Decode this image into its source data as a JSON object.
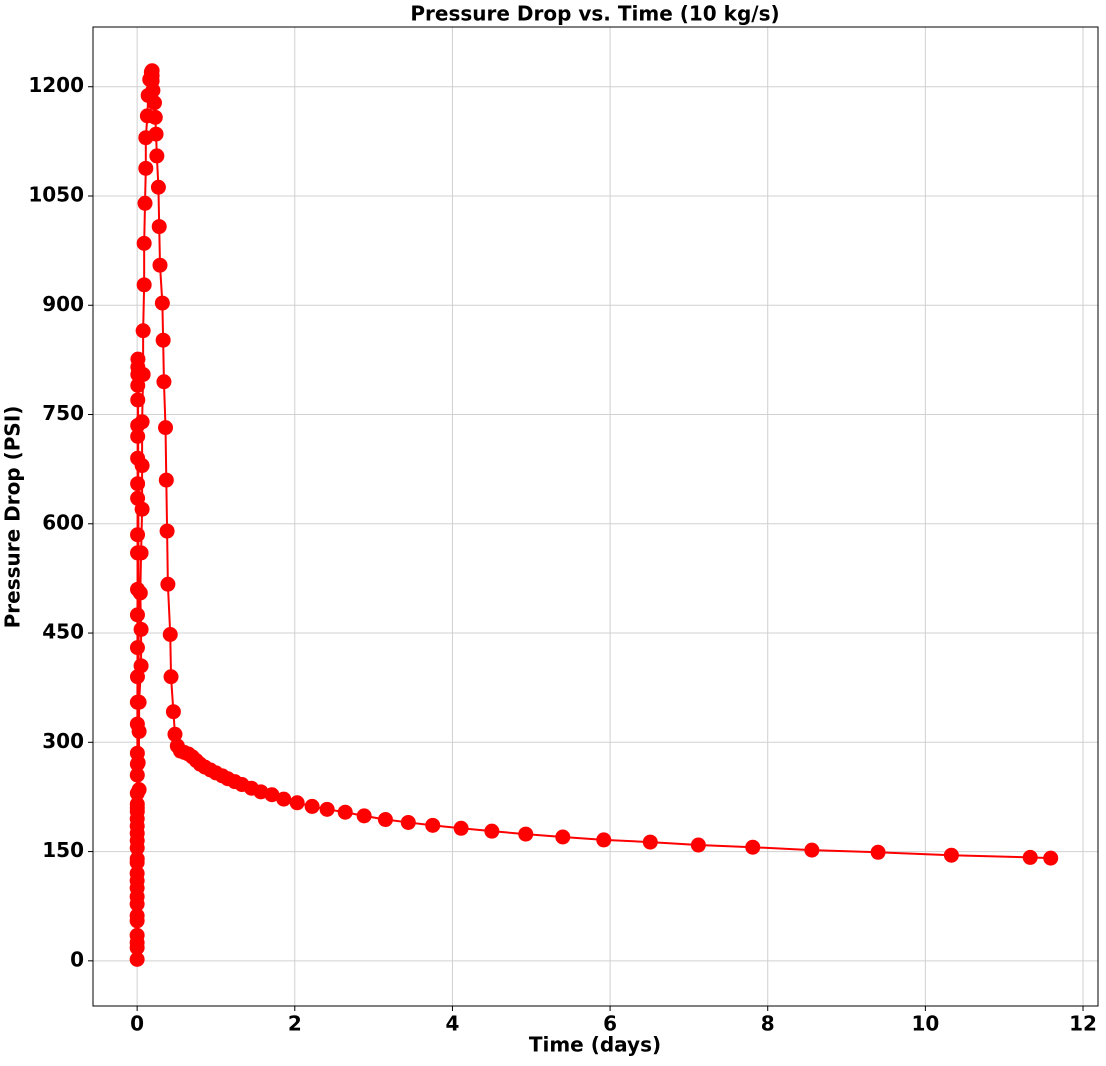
{
  "chart_data": {
    "type": "line",
    "title": "Pressure Drop vs. Time (10 kg/s)",
    "x_label": "Time (days)",
    "y_label": "Pressure Drop (PSI)",
    "xlim": [
      -0.56,
      12.19
    ],
    "ylim": [
      -62,
      1282
    ],
    "xticks": [
      0,
      2,
      4,
      6,
      8,
      10,
      12
    ],
    "yticks": [
      0,
      150,
      300,
      450,
      600,
      750,
      900,
      1050,
      1200
    ],
    "grid": true,
    "series": [
      {
        "color": "#ff0000",
        "x": [
          0,
          0,
          0,
          0,
          0,
          0,
          0,
          0,
          0,
          0,
          0,
          0,
          0.001,
          0.001,
          0.001,
          0.001,
          0.001,
          0.001,
          0.002,
          0.002,
          0.002,
          0.002,
          0.002,
          0.003,
          0.003,
          0.003,
          0.003,
          0.004,
          0.004,
          0.004,
          0.005,
          0.005,
          0.005,
          0.006,
          0.006,
          0.006,
          0.007,
          0.007,
          0.008,
          0.008,
          0.009,
          0.009,
          0.01,
          0.025,
          0.013,
          0.025,
          0.025,
          0.05,
          0.05,
          0.04,
          0.05,
          0.063,
          0.063,
          0.063,
          0.076,
          0.076,
          0.089,
          0.089,
          0.1,
          0.11,
          0.11,
          0.13,
          0.14,
          0.16,
          0.18,
          0.19,
          0.19,
          0.19,
          0.2,
          0.22,
          0.23,
          0.24,
          0.25,
          0.27,
          0.28,
          0.29,
          0.32,
          0.33,
          0.34,
          0.36,
          0.37,
          0.38,
          0.39,
          0.42,
          0.43,
          0.46,
          0.48,
          0.51,
          0.55,
          0.6,
          0.65,
          0.7,
          0.75,
          0.8,
          0.86,
          0.93,
          1.0,
          1.08,
          1.15,
          1.24,
          1.33,
          1.45,
          1.57,
          1.71,
          1.86,
          2.03,
          2.22,
          2.41,
          2.64,
          2.88,
          3.15,
          3.44,
          3.75,
          4.11,
          4.5,
          4.93,
          5.4,
          5.92,
          6.51,
          7.12,
          7.81,
          8.56,
          9.4,
          10.33,
          11.33,
          11.59
        ],
        "values": [
          2,
          18,
          25,
          35,
          55,
          62,
          78,
          88,
          100,
          110,
          120,
          135,
          140,
          155,
          165,
          175,
          185,
          195,
          205,
          210,
          215,
          230,
          255,
          270,
          285,
          325,
          355,
          390,
          430,
          475,
          510,
          560,
          585,
          635,
          655,
          690,
          720,
          735,
          770,
          790,
          805,
          815,
          826,
          235,
          272,
          315,
          355,
          405,
          455,
          505,
          560,
          620,
          680,
          740,
          805,
          865,
          928,
          985,
          1040,
          1088,
          1130,
          1160,
          1188,
          1210,
          1220,
          1222,
          1215,
          1208,
          1195,
          1178,
          1158,
          1135,
          1105,
          1062,
          1008,
          955,
          903,
          852,
          795,
          732,
          660,
          590,
          517,
          448,
          390,
          342,
          311,
          295,
          288,
          286,
          284,
          280,
          275,
          270,
          266,
          262,
          258,
          254,
          250,
          246,
          242,
          237,
          232,
          228,
          222,
          217,
          212,
          208,
          204,
          199,
          194,
          190,
          186,
          182,
          178,
          174,
          170,
          166,
          163,
          159,
          156,
          152,
          149,
          145,
          142,
          141
        ]
      }
    ]
  }
}
